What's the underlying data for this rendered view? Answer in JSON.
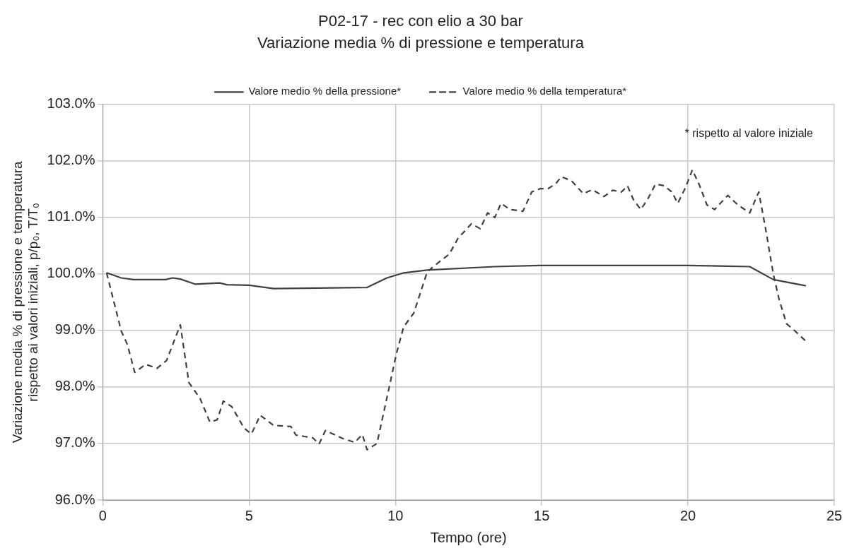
{
  "chart_data": {
    "type": "line",
    "title": "P02-17 - rec con elio a 30 bar",
    "subtitle": "Variazione media % di pressione e temperatura",
    "xlabel": "Tempo (ore)",
    "ylabel": "Variazione media % di pressione e temperatura\nrispetto ai valori iniziali, p/p₀, T/T₀",
    "annotations": [
      "* rispetto al valore iniziale"
    ],
    "xlim": [
      0,
      25
    ],
    "xticks": [
      0,
      5,
      10,
      15,
      20,
      25
    ],
    "ylim": [
      96,
      103
    ],
    "yticks": [
      {
        "value": 96,
        "label": "96.0%"
      },
      {
        "value": 97,
        "label": "97.0%"
      },
      {
        "value": 98,
        "label": "98.0%"
      },
      {
        "value": 99,
        "label": "99.0%"
      },
      {
        "value": 100,
        "label": "100.0%"
      },
      {
        "value": 101,
        "label": "101.0%"
      },
      {
        "value": 102,
        "label": "102.0%"
      },
      {
        "value": 103,
        "label": "103.0%"
      }
    ],
    "grid": true,
    "legend": "top",
    "marker": "none",
    "series": [
      {
        "name": "Valore medio % della pressione*",
        "color": "#404040",
        "line_style": "solid",
        "x": [
          0.13,
          0.63,
          1.05,
          2.14,
          2.39,
          2.65,
          3.15,
          3.99,
          4.24,
          5.0,
          5.84,
          9.03,
          9.71,
          10.29,
          11.09,
          13.4,
          14.91,
          20,
          22.11,
          22.92,
          24.03
        ],
        "values": [
          100.02,
          99.93,
          99.9,
          99.9,
          99.93,
          99.91,
          99.82,
          99.84,
          99.81,
          99.8,
          99.74,
          99.76,
          99.93,
          100.02,
          100.07,
          100.13,
          100.15,
          100.15,
          100.13,
          99.9,
          99.79
        ]
      },
      {
        "name": "Valore medio % della temperatura*",
        "color": "#404040",
        "line_style": "dashed",
        "x": [
          0.13,
          0.63,
          0.84,
          1.09,
          1.47,
          1.85,
          2.18,
          2.65,
          2.94,
          3.32,
          3.66,
          3.91,
          4.12,
          4.41,
          4.83,
          5.08,
          5.38,
          5.84,
          6.43,
          6.6,
          7.18,
          7.39,
          7.61,
          8.19,
          8.61,
          8.87,
          9.03,
          9.37,
          9.79,
          10.03,
          10.28,
          10.63,
          11.09,
          11.49,
          11.84,
          12.14,
          12.6,
          12.9,
          13.15,
          13.4,
          13.61,
          13.91,
          14.36,
          14.66,
          14.96,
          15.22,
          15.47,
          15.67,
          16.02,
          16.42,
          16.73,
          17.13,
          17.43,
          17.73,
          17.93,
          18.14,
          18.39,
          18.64,
          18.89,
          19.19,
          19.45,
          19.65,
          19.9,
          20.15,
          20.4,
          20.65,
          20.91,
          21.36,
          21.71,
          22.11,
          22.42,
          22.67,
          22.92,
          23.12,
          23.37,
          23.68,
          24.03
        ],
        "values": [
          100.02,
          98.99,
          98.75,
          98.26,
          98.4,
          98.33,
          98.47,
          99.1,
          98.08,
          97.8,
          97.38,
          97.42,
          97.75,
          97.65,
          97.27,
          97.17,
          97.5,
          97.32,
          97.3,
          97.15,
          97.1,
          96.99,
          97.23,
          97.09,
          97.02,
          97.16,
          96.89,
          97.0,
          98.0,
          98.58,
          99.06,
          99.31,
          100.04,
          100.21,
          100.35,
          100.63,
          100.89,
          100.8,
          101.08,
          101.0,
          101.25,
          101.14,
          101.11,
          101.45,
          101.51,
          101.51,
          101.59,
          101.72,
          101.65,
          101.42,
          101.49,
          101.37,
          101.48,
          101.45,
          101.56,
          101.31,
          101.14,
          101.34,
          101.59,
          101.56,
          101.45,
          101.25,
          101.51,
          101.84,
          101.56,
          101.22,
          101.14,
          101.39,
          101.22,
          101.08,
          101.45,
          100.75,
          99.99,
          99.54,
          99.12,
          98.98,
          98.81
        ]
      }
    ]
  }
}
